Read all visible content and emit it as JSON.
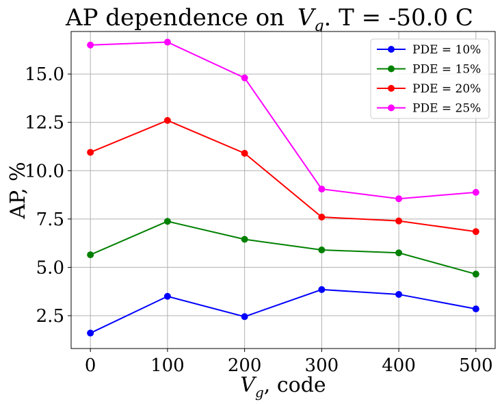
{
  "chart_data": {
    "type": "line",
    "title_prefix": "AP dependence on",
    "title_var": "V",
    "title_var_sub": "g",
    "title_suffix": ". T = -50.0 C",
    "xlabel_var": "V",
    "xlabel_var_sub": "g",
    "xlabel_suffix": ", code",
    "ylabel": "AP, %",
    "x": [
      0,
      100,
      200,
      300,
      400,
      500
    ],
    "xlim": [
      -25,
      525
    ],
    "ylim": [
      0.8,
      17.2
    ],
    "xticks": [
      0,
      100,
      200,
      300,
      400,
      500
    ],
    "yticks": [
      2.5,
      5.0,
      7.5,
      10.0,
      12.5,
      15.0
    ],
    "ytick_labels": [
      "2.5",
      "5.0",
      "7.5",
      "10.0",
      "12.5",
      "15.0"
    ],
    "xtick_labels": [
      "0",
      "100",
      "200",
      "300",
      "400",
      "500"
    ],
    "grid": true,
    "legend_position": "top-right",
    "series": [
      {
        "name": "PDE = 10%",
        "color": "#0000ff",
        "values": [
          1.6,
          3.5,
          2.45,
          3.85,
          3.6,
          2.85
        ]
      },
      {
        "name": "PDE = 15%",
        "color": "#008000",
        "values": [
          5.65,
          7.38,
          6.45,
          5.9,
          5.75,
          4.65
        ]
      },
      {
        "name": "PDE = 20%",
        "color": "#ff0000",
        "values": [
          10.95,
          12.6,
          10.9,
          7.6,
          7.4,
          6.85
        ]
      },
      {
        "name": "PDE = 25%",
        "color": "#ff00ff",
        "values": [
          16.5,
          16.65,
          14.8,
          9.05,
          8.55,
          8.88
        ]
      }
    ]
  }
}
